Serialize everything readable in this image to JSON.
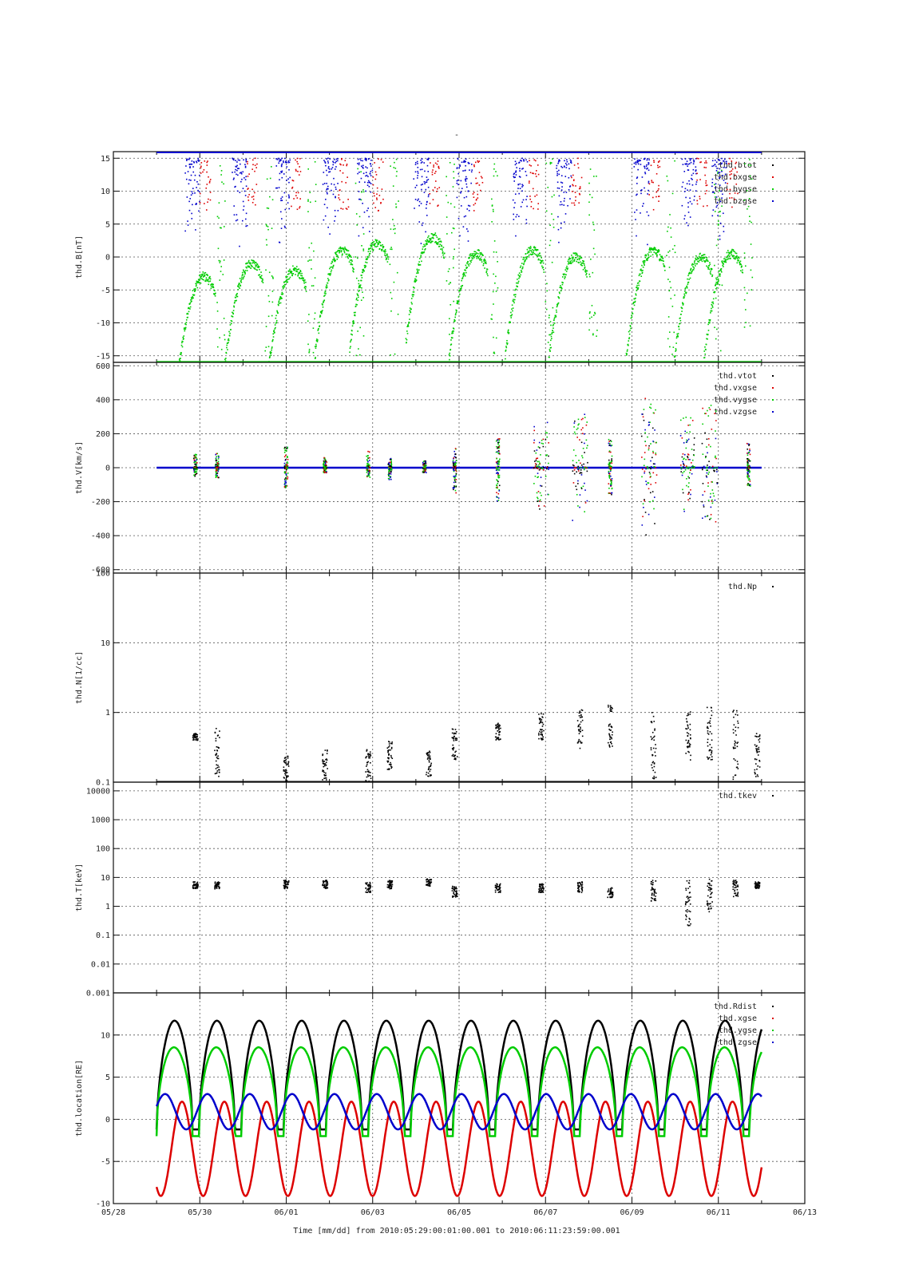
{
  "figure": {
    "title": "-",
    "x_axis_title": "Time [mm/dd]  from 2010:05:29:00:01:00.001  to  2010:06:11:23:59:00.001"
  },
  "colors": {
    "black": "#000000",
    "red": "#dd0000",
    "green": "#00cc00",
    "blue": "#0000cc"
  },
  "chart_data": [
    {
      "type": "scatter",
      "ylabel": "thd.B[nT]",
      "xlim": [
        "2010-05-28",
        "2010-06-13"
      ],
      "x_ticks": [
        "05/28",
        "05/30",
        "06/01",
        "06/03",
        "06/05",
        "06/07",
        "06/09",
        "06/11",
        "06/13"
      ],
      "ylim": [
        -16,
        16
      ],
      "y_ticks": [
        "15",
        "10",
        "5",
        "0",
        "-5",
        "-10",
        "-15"
      ],
      "grid": true,
      "legend_position": "top-right",
      "series": [
        {
          "name": "thd.btot",
          "color": "black"
        },
        {
          "name": "thd.bxgse",
          "color": "red"
        },
        {
          "name": "thd.bygse",
          "color": "green"
        },
        {
          "name": "thd.bzgse",
          "color": "blue"
        }
      ],
      "legend_labels": [
        "thd.btot",
        "thd.bxgse",
        "thd.bygse",
        "thd.bzgse"
      ],
      "bygse_peaks": [
        {
          "date": "2010-05-30.1",
          "value": -3
        },
        {
          "date": "2010-05-31.2",
          "value": -1
        },
        {
          "date": "2010-06-01.2",
          "value": -2
        },
        {
          "date": "2010-06-02.3",
          "value": 1
        },
        {
          "date": "2010-06-03.1",
          "value": 2
        },
        {
          "date": "2010-06-04.4",
          "value": 3
        },
        {
          "date": "2010-06-05.4",
          "value": 0.5
        },
        {
          "date": "2010-06-06.7",
          "value": 1
        },
        {
          "date": "2010-06-07.7",
          "value": 0
        },
        {
          "date": "2010-06-09.5",
          "value": 1
        },
        {
          "date": "2010-06-10.6",
          "value": 0
        },
        {
          "date": "2010-06-11.3",
          "value": 0.5
        }
      ]
    },
    {
      "type": "scatter",
      "ylabel": "thd.V[km/s]",
      "xlim": [
        "2010-05-28",
        "2010-06-13"
      ],
      "ylim": [
        -620,
        620
      ],
      "y_ticks": [
        "600",
        "400",
        "200",
        "0",
        "-200",
        "-400",
        "-600"
      ],
      "grid": true,
      "legend_position": "top-right",
      "legend_labels": [
        "thd.vtot",
        "thd.vxgse",
        "thd.vygse",
        "thd.vzgse"
      ],
      "series_baseline": 0,
      "spikes": [
        {
          "date": "2010-05-29.9",
          "max": 80,
          "min": -50
        },
        {
          "date": "2010-05-30.4",
          "max": 90,
          "min": -60
        },
        {
          "date": "2010-06-01.0",
          "max": 130,
          "min": -120
        },
        {
          "date": "2010-06-01.9",
          "max": 60,
          "min": -30
        },
        {
          "date": "2010-06-02.9",
          "max": 100,
          "min": -60
        },
        {
          "date": "2010-06-03.4",
          "max": 80,
          "min": -70
        },
        {
          "date": "2010-06-04.2",
          "max": 40,
          "min": -30
        },
        {
          "date": "2010-06-04.9",
          "max": 120,
          "min": -150
        },
        {
          "date": "2010-06-05.9",
          "max": 170,
          "min": -200
        },
        {
          "date": "2010-06-06.9",
          "max": 280,
          "min": -250
        },
        {
          "date": "2010-06-07.8",
          "max": 320,
          "min": -320
        },
        {
          "date": "2010-06-08.5",
          "max": 170,
          "min": -180
        },
        {
          "date": "2010-06-09.4",
          "max": 430,
          "min": -410
        },
        {
          "date": "2010-06-10.3",
          "max": 320,
          "min": -260
        },
        {
          "date": "2010-06-10.8",
          "max": 380,
          "min": -340
        },
        {
          "date": "2010-06-11.7",
          "max": 160,
          "min": -110
        }
      ]
    },
    {
      "type": "scatter",
      "ylabel": "thd.N[1/cc]",
      "xlim": [
        "2010-05-28",
        "2010-06-13"
      ],
      "ylim": [
        0.1,
        100
      ],
      "y_scale": "log",
      "y_ticks": [
        "100",
        "10",
        "1",
        "0.1"
      ],
      "grid": true,
      "legend_position": "top-right",
      "legend_labels": [
        "thd.Np"
      ],
      "segments": [
        {
          "date": "2010-05-29.9",
          "low": 0.4,
          "high": 0.5
        },
        {
          "date": "2010-05-30.4",
          "low": 0.12,
          "high": 0.6
        },
        {
          "date": "2010-06-01.0",
          "low": 0.1,
          "high": 0.25
        },
        {
          "date": "2010-06-01.9",
          "low": 0.1,
          "high": 0.3
        },
        {
          "date": "2010-06-02.9",
          "low": 0.1,
          "high": 0.3
        },
        {
          "date": "2010-06-03.4",
          "low": 0.15,
          "high": 0.4
        },
        {
          "date": "2010-06-04.3",
          "low": 0.12,
          "high": 0.3
        },
        {
          "date": "2010-06-04.9",
          "low": 0.2,
          "high": 0.6
        },
        {
          "date": "2010-06-05.9",
          "low": 0.4,
          "high": 0.7
        },
        {
          "date": "2010-06-06.9",
          "low": 0.4,
          "high": 1.0
        },
        {
          "date": "2010-06-07.8",
          "low": 0.3,
          "high": 1.1
        },
        {
          "date": "2010-06-08.5",
          "low": 0.3,
          "high": 1.3
        },
        {
          "date": "2010-06-09.5",
          "low": 0.1,
          "high": 1.0
        },
        {
          "date": "2010-06-10.3",
          "low": 0.2,
          "high": 1.1
        },
        {
          "date": "2010-06-10.8",
          "low": 0.2,
          "high": 1.2
        },
        {
          "date": "2010-06-11.4",
          "low": 0.1,
          "high": 1.1
        },
        {
          "date": "2010-06-11.9",
          "low": 0.12,
          "high": 0.5
        }
      ]
    },
    {
      "type": "scatter",
      "ylabel": "thd.T[keV]",
      "xlim": [
        "2010-05-28",
        "2010-06-13"
      ],
      "ylim": [
        0.001,
        20000
      ],
      "y_scale": "log",
      "y_ticks": [
        "10000",
        "1000",
        "100",
        "10",
        "1",
        "0.1",
        "0.01",
        "0.001"
      ],
      "grid": true,
      "legend_position": "top-right",
      "legend_labels": [
        "thd.tkev"
      ],
      "segments": [
        {
          "date": "2010-05-29.9",
          "low": 4,
          "high": 7
        },
        {
          "date": "2010-05-30.4",
          "low": 4,
          "high": 7
        },
        {
          "date": "2010-06-01.0",
          "low": 4,
          "high": 8
        },
        {
          "date": "2010-06-01.9",
          "low": 4,
          "high": 8
        },
        {
          "date": "2010-06-02.9",
          "low": 3,
          "high": 7
        },
        {
          "date": "2010-06-03.4",
          "low": 4,
          "high": 8
        },
        {
          "date": "2010-06-04.3",
          "low": 5,
          "high": 9
        },
        {
          "date": "2010-06-04.9",
          "low": 2,
          "high": 5
        },
        {
          "date": "2010-06-05.9",
          "low": 3,
          "high": 6
        },
        {
          "date": "2010-06-06.9",
          "low": 3,
          "high": 6
        },
        {
          "date": "2010-06-07.8",
          "low": 3,
          "high": 7
        },
        {
          "date": "2010-06-08.5",
          "low": 2,
          "high": 5
        },
        {
          "date": "2010-06-09.5",
          "low": 1.5,
          "high": 8
        },
        {
          "date": "2010-06-10.3",
          "low": 0.2,
          "high": 8
        },
        {
          "date": "2010-06-10.8",
          "low": 0.6,
          "high": 9
        },
        {
          "date": "2010-06-11.4",
          "low": 2,
          "high": 8
        },
        {
          "date": "2010-06-11.9",
          "low": 4,
          "high": 7
        }
      ]
    },
    {
      "type": "line",
      "ylabel": "thd.location[RE]",
      "xlim": [
        "2010-05-28",
        "2010-06-13"
      ],
      "x_ticks": [
        "05/28",
        "05/30",
        "06/01",
        "06/03",
        "06/05",
        "06/07",
        "06/09",
        "06/11",
        "06/13"
      ],
      "ylim": [
        -10,
        15
      ],
      "y_ticks": [
        "10",
        "5",
        "0",
        "-5",
        "-10"
      ],
      "grid": true,
      "legend_position": "top-right",
      "legend_labels": [
        "thd.Rdist",
        "thd.xgse",
        "thd.ygse",
        "thd.zgse"
      ],
      "time_range": [
        "2010-05-29",
        "2010-06-12"
      ],
      "orbit_period_days": 0.98,
      "Rdist": {
        "min": -1.2,
        "max": 11.7
      },
      "xgse": {
        "min": -9.1,
        "max": 2.0
      },
      "ygse": {
        "min": -2.0,
        "max": 9.0
      },
      "zgse": {
        "min": -1.2,
        "max": 3.0
      }
    }
  ]
}
